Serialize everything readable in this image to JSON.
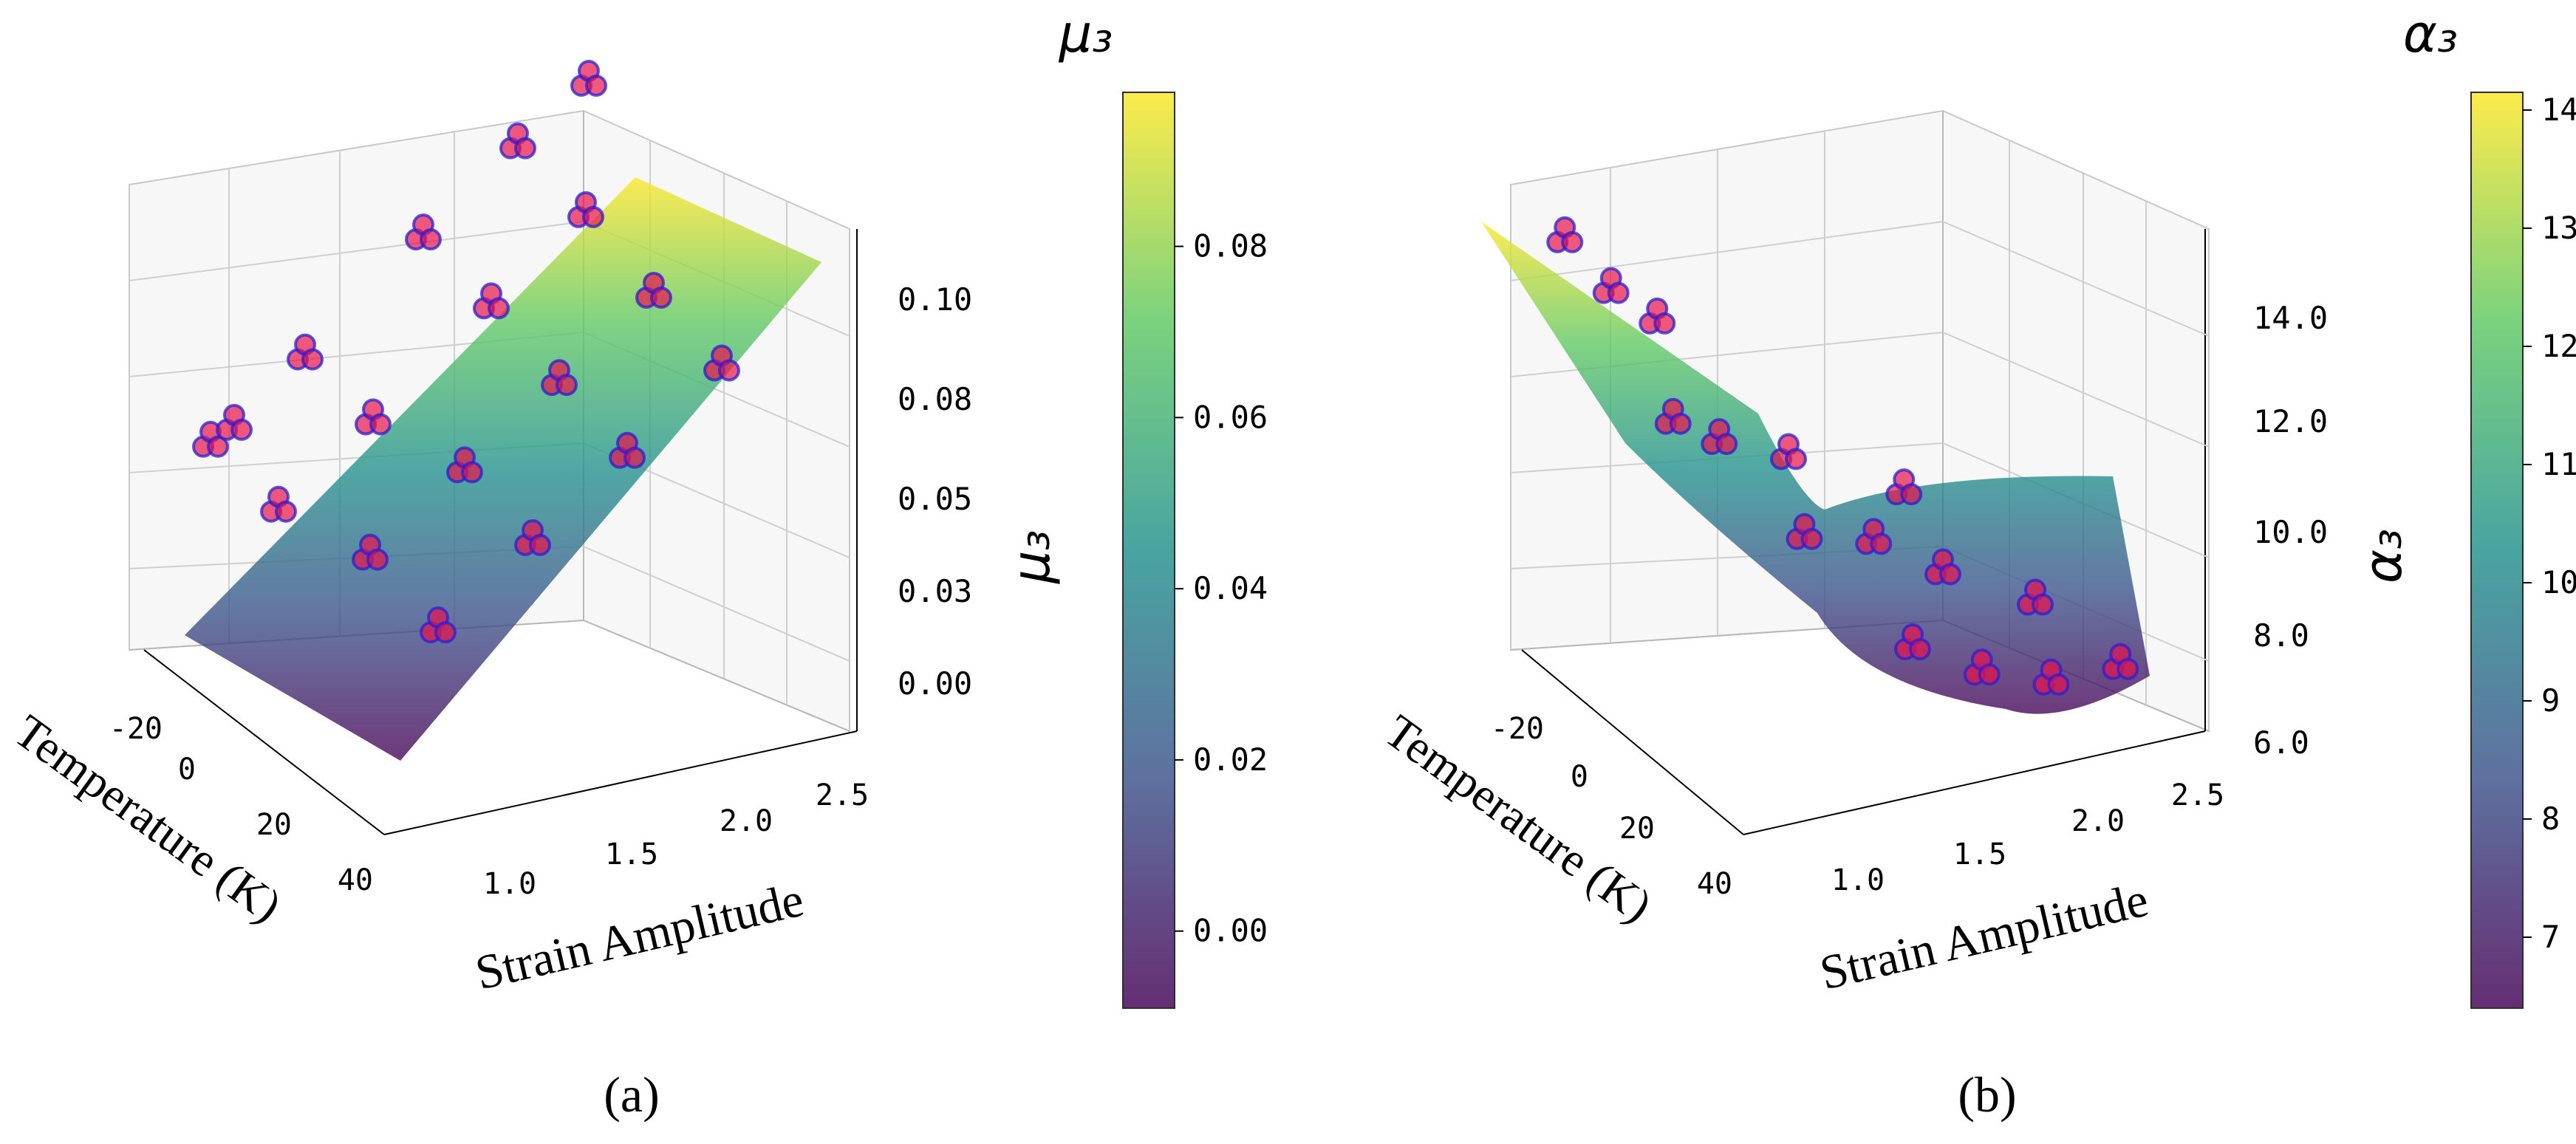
{
  "chart_data": [
    {
      "type": "scatter3d_surface",
      "panel_label": "(a)",
      "xlabel": "Temperature (K)",
      "ylabel": "Strain Amplitude",
      "zlabel": "μ₃",
      "x_ticks": [
        "-20",
        "0",
        "20",
        "40"
      ],
      "y_ticks": [
        "1.0",
        "1.5",
        "2.0",
        "2.5"
      ],
      "z_ticks": [
        "0.00",
        "0.03",
        "0.05",
        "0.08",
        "0.10"
      ],
      "xlim": [
        -30,
        45
      ],
      "ylim": [
        0.7,
        2.7
      ],
      "zlim": [
        -0.02,
        0.11
      ],
      "colorbar": {
        "title": "μ₃",
        "ticks": [
          "0.00",
          "0.02",
          "0.04",
          "0.06",
          "0.08"
        ],
        "tick_values": [
          0.0,
          0.02,
          0.04,
          0.06,
          0.08
        ],
        "range": [
          -0.009,
          0.098
        ],
        "colormap": "viridis"
      },
      "surface_model": {
        "z0": -0.01,
        "dz_dx": -0.00012,
        "dz_dy": 0.045,
        "x_ref": 0,
        "y_ref": 0.8
      },
      "points": [
        {
          "x": -20,
          "y": 0.9,
          "z": 0.037
        },
        {
          "x": -20,
          "y": 1.0,
          "z": 0.04
        },
        {
          "x": -20,
          "y": 1.3,
          "z": 0.054
        },
        {
          "x": -20,
          "y": 1.8,
          "z": 0.078
        },
        {
          "x": -20,
          "y": 2.2,
          "z": 0.096
        },
        {
          "x": -20,
          "y": 2.5,
          "z": 0.108
        },
        {
          "x": 0,
          "y": 0.9,
          "z": 0.033
        },
        {
          "x": 0,
          "y": 1.3,
          "z": 0.05
        },
        {
          "x": 0,
          "y": 1.8,
          "z": 0.073
        },
        {
          "x": 0,
          "y": 2.2,
          "z": 0.091
        },
        {
          "x": 20,
          "y": 1.0,
          "z": 0.032
        },
        {
          "x": 20,
          "y": 1.4,
          "z": 0.049
        },
        {
          "x": 20,
          "y": 1.8,
          "z": 0.066
        },
        {
          "x": 20,
          "y": 2.2,
          "z": 0.083
        },
        {
          "x": 40,
          "y": 1.0,
          "z": 0.026
        },
        {
          "x": 40,
          "y": 1.4,
          "z": 0.043
        },
        {
          "x": 40,
          "y": 1.8,
          "z": 0.06
        },
        {
          "x": 40,
          "y": 2.2,
          "z": 0.077
        }
      ]
    },
    {
      "type": "scatter3d_surface",
      "panel_label": "(b)",
      "xlabel": "Temperature (K)",
      "ylabel": "Strain Amplitude",
      "zlabel": "α₃",
      "x_ticks": [
        "-20",
        "0",
        "20",
        "40"
      ],
      "y_ticks": [
        "1.0",
        "1.5",
        "2.0",
        "2.5"
      ],
      "z_ticks": [
        "6.0",
        "8.0",
        "10.0",
        "12.0",
        "14.0"
      ],
      "xlim": [
        -30,
        45
      ],
      "ylim": [
        0.7,
        2.7
      ],
      "zlim": [
        5.5,
        15.5
      ],
      "colorbar": {
        "title": "α₃",
        "ticks": [
          "7",
          "8",
          "9",
          "10",
          "11",
          "12",
          "13",
          "14"
        ],
        "tick_values": [
          7,
          8,
          9,
          10,
          11,
          12,
          13,
          14
        ],
        "range": [
          6.4,
          14.15
        ],
        "colormap": "viridis"
      },
      "points": [
        {
          "x": -20,
          "y": 0.8,
          "z": 14.0
        },
        {
          "x": -20,
          "y": 1.0,
          "z": 12.8
        },
        {
          "x": -20,
          "y": 1.2,
          "z": 12.0
        },
        {
          "x": 0,
          "y": 1.0,
          "z": 11.2
        },
        {
          "x": 0,
          "y": 1.2,
          "z": 10.6
        },
        {
          "x": 0,
          "y": 1.5,
          "z": 10.0
        },
        {
          "x": 20,
          "y": 1.3,
          "z": 9.6
        },
        {
          "x": 20,
          "y": 1.6,
          "z": 9.2
        },
        {
          "x": 20,
          "y": 1.9,
          "z": 8.3
        },
        {
          "x": 40,
          "y": 1.5,
          "z": 8.2
        },
        {
          "x": 40,
          "y": 1.8,
          "z": 7.4
        },
        {
          "x": 40,
          "y": 2.1,
          "z": 6.9
        },
        {
          "x": 40,
          "y": 2.4,
          "z": 6.9
        },
        {
          "x": 20,
          "y": 2.3,
          "z": 7.3
        },
        {
          "x": 0,
          "y": 2.0,
          "z": 8.8
        }
      ]
    }
  ]
}
